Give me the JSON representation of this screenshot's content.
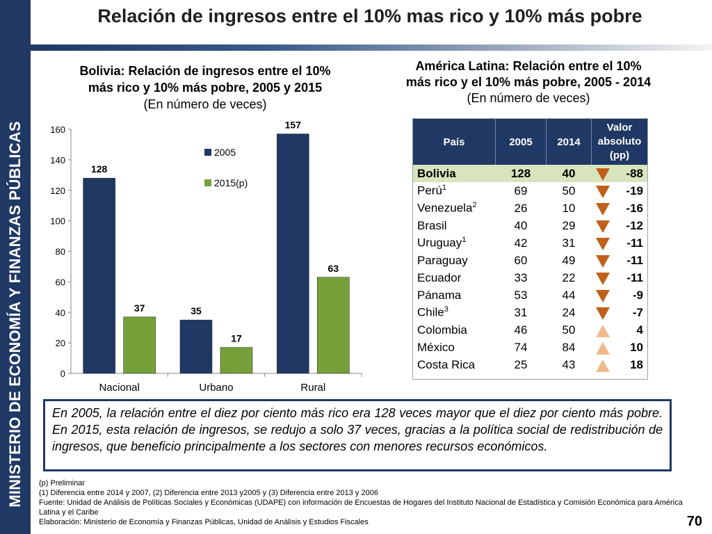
{
  "sidebar": {
    "text": "MINISTERIO DE ECONOMÍA Y FINANZAS PÚBLICAS"
  },
  "header": {
    "title": "Relación de ingresos entre el 10% mas rico y 10% más pobre"
  },
  "left_panel": {
    "title_line1": "Bolivia: Relación de ingresos entre el 10%",
    "title_line2": "más rico y 10% más pobre, 2005 y 2015",
    "subtitle": "(En número de veces)"
  },
  "chart_data": {
    "type": "bar",
    "categories": [
      "Nacional",
      "Urbano",
      "Rural"
    ],
    "series": [
      {
        "name": "2005",
        "values": [
          128,
          35,
          157
        ],
        "color": "#1f3864"
      },
      {
        "name": "2015(p)",
        "values": [
          37,
          17,
          63
        ],
        "color": "#76a03a"
      }
    ],
    "ylim": [
      0,
      160
    ],
    "yticks": [
      0,
      20,
      40,
      60,
      80,
      100,
      120,
      140,
      160
    ],
    "legend": "top-center",
    "grid": false
  },
  "right_panel": {
    "title_line1": "América Latina: Relación entre el 10%",
    "title_line2": "más rico y el 10% más pobre, 2005 - 2014",
    "subtitle": "(En número de veces)",
    "table": {
      "headers": [
        "País",
        "2005",
        "2014",
        "Valor absoluto (pp)"
      ],
      "rows": [
        {
          "country": "Bolivia",
          "sup": "",
          "v2005": "128",
          "v2014": "40",
          "trend": "down",
          "diff": "-88",
          "highlight": true
        },
        {
          "country": "Perú",
          "sup": "1",
          "v2005": "69",
          "v2014": "50",
          "trend": "down",
          "diff": "-19"
        },
        {
          "country": "Venezuela",
          "sup": "2",
          "v2005": "26",
          "v2014": "10",
          "trend": "down",
          "diff": "-16"
        },
        {
          "country": "Brasil",
          "sup": "",
          "v2005": "40",
          "v2014": "29",
          "trend": "down",
          "diff": "-12"
        },
        {
          "country": "Uruguay",
          "sup": "1",
          "v2005": "42",
          "v2014": "31",
          "trend": "down",
          "diff": "-11"
        },
        {
          "country": "Paraguay",
          "sup": "",
          "v2005": "60",
          "v2014": "49",
          "trend": "down",
          "diff": "-11"
        },
        {
          "country": "Ecuador",
          "sup": "",
          "v2005": "33",
          "v2014": "22",
          "trend": "down",
          "diff": "-11"
        },
        {
          "country": "Pánama",
          "sup": "",
          "v2005": "53",
          "v2014": "44",
          "trend": "down",
          "diff": "-9"
        },
        {
          "country": "Chile",
          "sup": "3",
          "v2005": "31",
          "v2014": "24",
          "trend": "down",
          "diff": "-7"
        },
        {
          "country": "Colombia",
          "sup": "",
          "v2005": "46",
          "v2014": "50",
          "trend": "up",
          "diff": "4"
        },
        {
          "country": "México",
          "sup": "",
          "v2005": "74",
          "v2014": "84",
          "trend": "up",
          "diff": "10"
        },
        {
          "country": "Costa Rica",
          "sup": "",
          "v2005": "25",
          "v2014": "43",
          "trend": "up",
          "diff": "18"
        }
      ]
    }
  },
  "callout": {
    "text": "En 2005, la relación entre el diez por ciento más rico era 128 veces mayor que el diez por ciento más pobre. En 2015, esta relación de ingresos, se redujo a solo 37 veces, gracias a la política social de redistribución de ingresos, que beneficio principalmente a los sectores con menores recursos económicos."
  },
  "footnotes": {
    "line1": "(p) Preliminar",
    "line2": "(1) Diferencia entre 2014 y 2007, (2) Diferencia entre 2013 y2005 y (3) Diferencia entre 2013 y 2006",
    "line3": "Fuente: Unidad de Análisis de Políticas Sociales y Económicas (UDAPE) con información de Encuestas de Hogares del Instituto Nacional de Estadística y Comisión Económica para América Latina y el Caribe",
    "line4": "Elaboración: Ministerio de Economía y Finanzas Públicas, Unidad de Análisis y Estudios Fiscales"
  },
  "page": {
    "number": "70"
  }
}
